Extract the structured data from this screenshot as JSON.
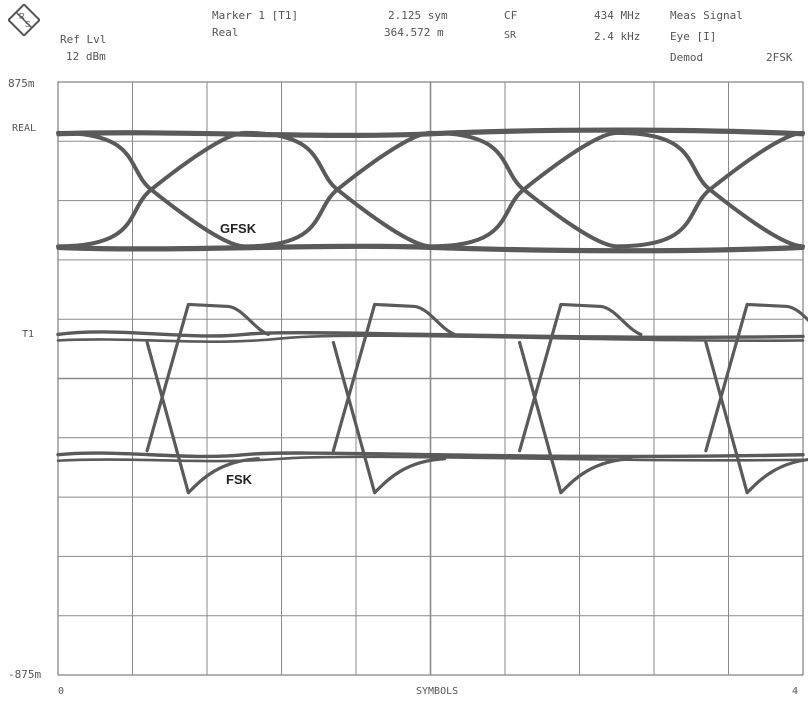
{
  "header": {
    "ref_lvl_label": "Ref Lvl",
    "ref_lvl_value": "12 dBm",
    "marker_label": "Marker 1 [T1]",
    "marker_sub": "Real",
    "marker_x": "2.125 sym",
    "marker_y": "364.572 m",
    "cf_label": "CF",
    "cf_value": "434 MHz",
    "sr_label": "SR",
    "sr_value": "2.4 kHz",
    "meas_label": "Meas Signal",
    "eye_label": "Eye [I]",
    "demod_label": "Demod",
    "demod_value": "2FSK"
  },
  "trace_labels": {
    "real": "REAL",
    "t1": "T1"
  },
  "chart_data": {
    "type": "line",
    "xlabel": "SYMBOLS",
    "ylabel": "",
    "xlim": [
      0,
      4
    ],
    "ylim": [
      -875,
      875
    ],
    "y_unit": "m",
    "y_tick_labels": [
      "875m",
      "-875m"
    ],
    "x_tick_labels": [
      "0",
      "4"
    ],
    "grid": true,
    "annotations": [
      "GFSK",
      "FSK"
    ],
    "series": [
      {
        "name": "GFSK",
        "eye_levels": [
          725,
          390
        ],
        "crossing_times_sym": [
          0.5,
          1.5,
          2.5,
          3.5
        ]
      },
      {
        "name": "FSK",
        "eye_levels": [
          130,
          -225
        ],
        "crossing_times_sym": [
          0.6,
          1.6,
          2.6,
          3.6
        ]
      }
    ],
    "color": "#5a5a5a"
  }
}
